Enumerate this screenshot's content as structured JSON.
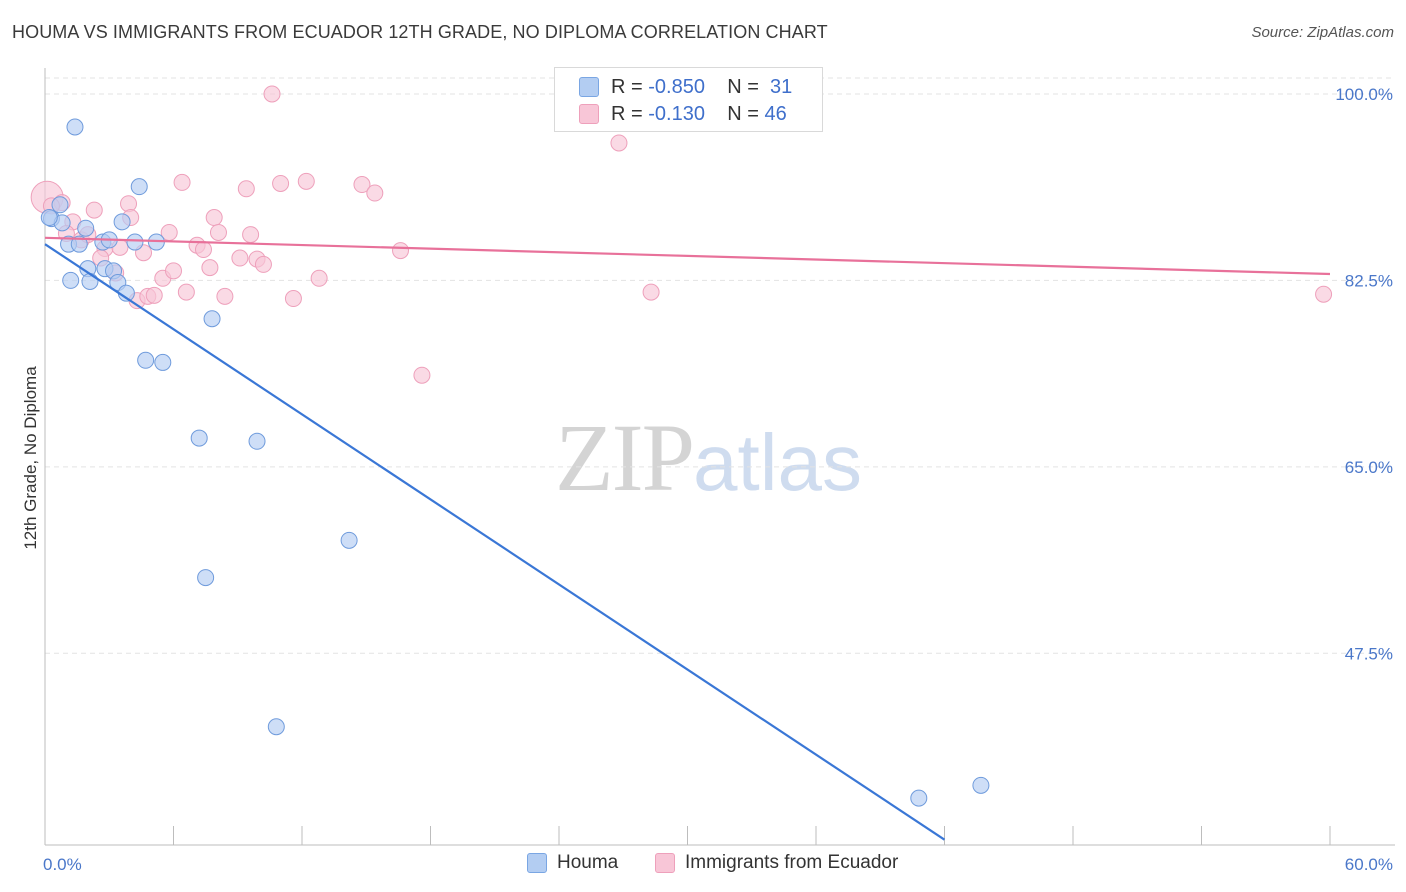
{
  "title": "HOUMA VS IMMIGRANTS FROM ECUADOR 12TH GRADE, NO DIPLOMA CORRELATION CHART",
  "source": "Source: ZipAtlas.com",
  "watermark": {
    "zip": "ZIP",
    "atlas": "atlas"
  },
  "legend_top": {
    "rows": [
      {
        "r_label": "R =",
        "r_value": "-0.850",
        "n_label": "N =",
        "n_value": "31"
      },
      {
        "r_label": "R =",
        "r_value": "-0.130",
        "n_label": "N =",
        "n_value": "46"
      }
    ]
  },
  "bottom_legend": {
    "series1": "Houma",
    "series2": "Immigrants from Ecuador"
  },
  "colors": {
    "houma": "#3a77d6",
    "houma_fill": "#b3cdf2",
    "ecuador": "#e8719a",
    "ecuador_fill": "#f8c6d7",
    "tick": "#4a77c9",
    "grid": "#e3e3e3"
  },
  "chart_data": {
    "type": "scatter",
    "title": "HOUMA VS IMMIGRANTS FROM ECUADOR 12TH GRADE, NO DIPLOMA CORRELATION CHART",
    "xlabel": "",
    "ylabel": "12th Grade, No Diploma",
    "xlim": [
      0,
      60
    ],
    "ylim": [
      29.5,
      101.5
    ],
    "x_tick_labels": [
      "0.0%",
      "60.0%"
    ],
    "y_ticks": [
      100.0,
      82.5,
      65.0,
      47.5
    ],
    "y_tick_labels": [
      "100.0%",
      "82.5%",
      "65.0%",
      "47.5%"
    ],
    "grid": "horizontal dashed",
    "series": [
      {
        "name": "Houma",
        "color": "#3a77d6",
        "r": -0.85,
        "n": 31,
        "points": [
          [
            0.3,
            88.3
          ],
          [
            0.7,
            89.6
          ],
          [
            0.8,
            87.9
          ],
          [
            1.1,
            85.9
          ],
          [
            1.2,
            82.5
          ],
          [
            1.4,
            96.9
          ],
          [
            1.6,
            85.9
          ],
          [
            1.9,
            87.4
          ],
          [
            2.0,
            83.6
          ],
          [
            2.1,
            82.4
          ],
          [
            2.7,
            86.1
          ],
          [
            2.8,
            83.6
          ],
          [
            3.0,
            86.3
          ],
          [
            3.2,
            83.4
          ],
          [
            3.4,
            82.3
          ],
          [
            3.6,
            88.0
          ],
          [
            3.8,
            81.3
          ],
          [
            4.2,
            86.1
          ],
          [
            4.4,
            91.3
          ],
          [
            4.7,
            75.0
          ],
          [
            5.2,
            86.1
          ],
          [
            5.5,
            74.8
          ],
          [
            7.2,
            67.7
          ],
          [
            7.8,
            78.9
          ],
          [
            7.5,
            54.6
          ],
          [
            9.9,
            67.4
          ],
          [
            10.8,
            40.6
          ],
          [
            14.2,
            58.1
          ],
          [
            40.8,
            33.9
          ],
          [
            43.7,
            35.1
          ],
          [
            0.2,
            88.4
          ]
        ],
        "trendline": {
          "x": [
            0,
            42.0
          ],
          "y": [
            85.9,
            30.0
          ]
        }
      },
      {
        "name": "Immigrants from Ecuador",
        "color": "#e8719a",
        "r": -0.13,
        "n": 46,
        "points": [
          [
            0.1,
            90.3
          ],
          [
            0.8,
            89.8
          ],
          [
            1.3,
            88.0
          ],
          [
            1.7,
            86.3
          ],
          [
            2.0,
            86.8
          ],
          [
            2.3,
            89.1
          ],
          [
            2.8,
            85.5
          ],
          [
            3.3,
            83.2
          ],
          [
            3.5,
            85.6
          ],
          [
            3.9,
            89.7
          ],
          [
            4.0,
            88.4
          ],
          [
            4.3,
            80.6
          ],
          [
            4.6,
            85.1
          ],
          [
            4.8,
            81.0
          ],
          [
            5.1,
            81.1
          ],
          [
            5.5,
            82.7
          ],
          [
            5.8,
            87.0
          ],
          [
            6.0,
            83.4
          ],
          [
            6.4,
            91.7
          ],
          [
            6.6,
            81.4
          ],
          [
            7.1,
            85.8
          ],
          [
            7.4,
            85.4
          ],
          [
            7.7,
            83.7
          ],
          [
            7.9,
            88.4
          ],
          [
            8.1,
            87.0
          ],
          [
            8.4,
            81.0
          ],
          [
            9.1,
            84.6
          ],
          [
            9.4,
            91.1
          ],
          [
            9.6,
            86.8
          ],
          [
            9.9,
            84.5
          ],
          [
            10.2,
            84.0
          ],
          [
            10.6,
            100.0
          ],
          [
            11.0,
            91.6
          ],
          [
            11.6,
            80.8
          ],
          [
            12.2,
            91.8
          ],
          [
            12.8,
            82.7
          ],
          [
            14.8,
            91.5
          ],
          [
            15.4,
            90.7
          ],
          [
            16.6,
            85.3
          ],
          [
            17.6,
            73.6
          ],
          [
            26.8,
            95.4
          ],
          [
            28.3,
            81.4
          ],
          [
            59.7,
            81.2
          ],
          [
            1.0,
            86.9
          ],
          [
            2.6,
            84.6
          ],
          [
            0.3,
            89.5
          ]
        ],
        "trendline": {
          "x": [
            0,
            60
          ],
          "y": [
            86.5,
            83.1
          ]
        }
      }
    ]
  }
}
